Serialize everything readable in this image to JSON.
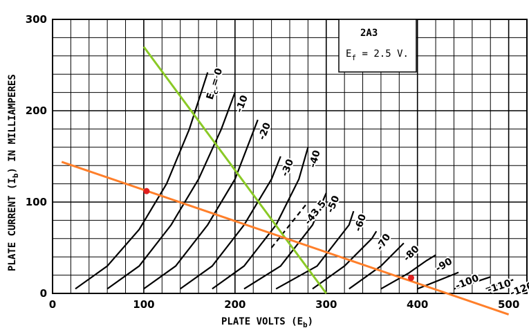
{
  "chart_data": {
    "type": "line",
    "title": "",
    "xlabel": "PLATE VOLTS (E",
    "xlabel_sub": "b",
    "xlabel_close": ")",
    "ylabel": "PLATE CURRENT (I",
    "ylabel_sub": "b",
    "ylabel_rest": ") IN MILLIAMPERES",
    "xlim": [
      0,
      520
    ],
    "ylim": [
      0,
      300
    ],
    "x_ticks": [
      0,
      100,
      200,
      300,
      400,
      500
    ],
    "y_ticks": [
      0,
      100,
      200,
      300
    ],
    "x_minor_step": 20,
    "y_minor_step": 20,
    "grid": true,
    "annotation_box": {
      "tube": "2A3",
      "filament_prefix": "E",
      "filament_sub": "f",
      "filament_value": " = 2.5 V."
    },
    "curve_family": [
      {
        "name": "E",
        "name_sub": "c",
        "name_suffix": " = 0",
        "points": [
          [
            25,
            5
          ],
          [
            60,
            30
          ],
          [
            95,
            70
          ],
          [
            125,
            120
          ],
          [
            150,
            180
          ],
          [
            170,
            242
          ]
        ]
      },
      {
        "name": "-10",
        "points": [
          [
            60,
            5
          ],
          [
            95,
            30
          ],
          [
            130,
            75
          ],
          [
            160,
            125
          ],
          [
            185,
            180
          ],
          [
            200,
            220
          ]
        ]
      },
      {
        "name": "-20",
        "points": [
          [
            100,
            5
          ],
          [
            135,
            30
          ],
          [
            170,
            75
          ],
          [
            200,
            125
          ],
          [
            225,
            190
          ]
        ]
      },
      {
        "name": "-30",
        "points": [
          [
            140,
            5
          ],
          [
            175,
            30
          ],
          [
            210,
            75
          ],
          [
            240,
            125
          ],
          [
            250,
            150
          ]
        ]
      },
      {
        "name": "-40",
        "points": [
          [
            175,
            5
          ],
          [
            210,
            30
          ],
          [
            245,
            75
          ],
          [
            270,
            125
          ],
          [
            280,
            160
          ]
        ]
      },
      {
        "name": "-43.5",
        "points": [
          [
            240,
            50
          ],
          [
            280,
            100
          ]
        ]
      },
      {
        "name": "-50",
        "points": [
          [
            210,
            5
          ],
          [
            250,
            30
          ],
          [
            285,
            75
          ],
          [
            300,
            110
          ]
        ]
      },
      {
        "name": "-60",
        "points": [
          [
            245,
            5
          ],
          [
            290,
            30
          ],
          [
            325,
            75
          ],
          [
            330,
            90
          ]
        ]
      },
      {
        "name": "-70",
        "points": [
          [
            285,
            5
          ],
          [
            320,
            30
          ],
          [
            350,
            60
          ],
          [
            355,
            68
          ]
        ]
      },
      {
        "name": "-80",
        "points": [
          [
            325,
            5
          ],
          [
            360,
            30
          ],
          [
            380,
            50
          ],
          [
            385,
            55
          ]
        ]
      },
      {
        "name": "-90",
        "points": [
          [
            360,
            5
          ],
          [
            390,
            22
          ],
          [
            410,
            36
          ],
          [
            420,
            42
          ]
        ]
      },
      {
        "name": "-100",
        "points": [
          [
            400,
            5
          ],
          [
            430,
            17
          ],
          [
            445,
            23
          ]
        ]
      },
      {
        "name": "-110",
        "points": [
          [
            440,
            5
          ],
          [
            465,
            13
          ],
          [
            480,
            18
          ]
        ]
      },
      {
        "name": "-120",
        "points": [
          [
            475,
            5
          ],
          [
            497,
            12
          ],
          [
            505,
            15
          ]
        ]
      }
    ],
    "load_lines": [
      {
        "color": "#8ac926",
        "points": [
          [
            100,
            270
          ],
          [
            300,
            0
          ]
        ]
      },
      {
        "color": "#ff7f2a",
        "points": [
          [
            10,
            144
          ],
          [
            500,
            -23
          ]
        ]
      }
    ],
    "operating_points": [
      {
        "color": "#e02020",
        "x": 103,
        "y": 112
      },
      {
        "color": "#e02020",
        "x": 393,
        "y": 17
      }
    ]
  }
}
